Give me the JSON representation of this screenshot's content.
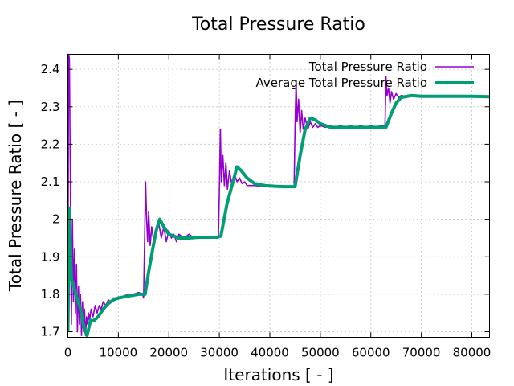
{
  "chart_data": {
    "type": "line",
    "title": "Total Pressure Ratio",
    "xlabel": "Iterations [ - ]",
    "ylabel": "Total Pressure Ratio [ - ]",
    "xlim": [
      0,
      83500
    ],
    "ylim": [
      1.685,
      2.44
    ],
    "xticks": [
      0,
      10000,
      20000,
      30000,
      40000,
      50000,
      60000,
      70000,
      80000
    ],
    "yticks": [
      1.7,
      1.8,
      1.9,
      2.0,
      2.1,
      2.2,
      2.3,
      2.4
    ],
    "ytick_labels": [
      "1.7",
      "1.8",
      "1.9",
      "2",
      "2.1",
      "2.2",
      "2.3",
      "2.4"
    ],
    "grid": true,
    "legend_position": "top-right",
    "series": [
      {
        "name": "Total Pressure Ratio",
        "color": "#9400d3",
        "x": [
          0,
          150,
          300,
          500,
          700,
          900,
          1100,
          1300,
          1500,
          1700,
          1900,
          2100,
          2300,
          2500,
          2700,
          2900,
          3100,
          3300,
          3500,
          3700,
          3900,
          4100,
          4300,
          4600,
          5000,
          5400,
          5800,
          6200,
          6600,
          7000,
          7500,
          8000,
          8500,
          9000,
          10000,
          11000,
          12000,
          13000,
          14000,
          14800,
          15000,
          15200,
          15400,
          15600,
          15800,
          16000,
          16300,
          16600,
          17000,
          17500,
          18000,
          18500,
          19000,
          19500,
          20000,
          20500,
          21000,
          21500,
          22000,
          23000,
          24000,
          25000,
          26000,
          27000,
          28000,
          29000,
          29800,
          30000,
          30200,
          30400,
          30700,
          31000,
          31300,
          31600,
          32000,
          32500,
          33000,
          33500,
          34000,
          34500,
          35000,
          35500,
          36000,
          37000,
          38000,
          39000,
          40000,
          41000,
          42000,
          43000,
          44000,
          44800,
          45000,
          45200,
          45400,
          45700,
          46000,
          46300,
          46600,
          47000,
          47500,
          48000,
          48500,
          49000,
          49500,
          50000,
          51000,
          52000,
          53000,
          54000,
          55000,
          56000,
          57000,
          58000,
          59000,
          60000,
          61000,
          62000,
          62800,
          63000,
          63200,
          63500,
          63800,
          64100,
          64500,
          65000,
          65500,
          66000,
          67000,
          68000,
          69000,
          70000,
          72000,
          74000,
          76000,
          78000,
          80000,
          82000,
          83500
        ],
        "y": [
          1.7,
          2.44,
          2.43,
          2.1,
          1.72,
          2.0,
          1.78,
          1.92,
          1.75,
          1.88,
          1.7,
          1.82,
          1.72,
          1.8,
          1.69,
          1.78,
          1.7,
          1.76,
          1.69,
          1.74,
          1.72,
          1.75,
          1.73,
          1.76,
          1.74,
          1.77,
          1.75,
          1.77,
          1.76,
          1.78,
          1.77,
          1.785,
          1.78,
          1.79,
          1.79,
          1.795,
          1.8,
          1.8,
          1.805,
          1.8,
          1.79,
          1.95,
          2.1,
          2.0,
          1.94,
          2.02,
          1.93,
          1.98,
          1.94,
          1.97,
          1.99,
          1.95,
          1.98,
          1.94,
          1.97,
          1.95,
          1.96,
          1.94,
          1.96,
          1.95,
          1.96,
          1.95,
          1.955,
          1.95,
          1.955,
          1.95,
          1.95,
          2.07,
          2.24,
          2.1,
          2.17,
          2.09,
          2.15,
          2.08,
          2.13,
          2.09,
          2.12,
          2.1,
          2.11,
          2.095,
          2.1,
          2.09,
          2.09,
          2.09,
          2.088,
          2.088,
          2.086,
          2.086,
          2.086,
          2.086,
          2.086,
          2.086,
          2.25,
          2.37,
          2.26,
          2.32,
          2.23,
          2.29,
          2.24,
          2.27,
          2.24,
          2.26,
          2.245,
          2.255,
          2.245,
          2.25,
          2.245,
          2.25,
          2.245,
          2.25,
          2.245,
          2.25,
          2.245,
          2.25,
          2.245,
          2.25,
          2.245,
          2.25,
          2.25,
          2.38,
          2.33,
          2.35,
          2.31,
          2.34,
          2.32,
          2.335,
          2.325,
          2.33,
          2.328,
          2.33,
          2.328,
          2.33,
          2.328,
          2.33,
          2.328,
          2.33,
          2.328,
          2.328,
          2.328
        ]
      },
      {
        "name": "Average Total Pressure Ratio",
        "color": "#009e73",
        "x": [
          0,
          300,
          700,
          1200,
          1800,
          2500,
          3200,
          3800,
          4500,
          5200,
          6000,
          7000,
          8000,
          9000,
          10000,
          12000,
          14000,
          15300,
          16000,
          16800,
          17500,
          18200,
          19000,
          20000,
          21000,
          22000,
          24000,
          26000,
          28000,
          29500,
          30300,
          31500,
          32500,
          33500,
          34300,
          35500,
          37000,
          39000,
          41000,
          43000,
          45000,
          46000,
          47000,
          48000,
          49000,
          50000,
          52000,
          54000,
          56000,
          58000,
          60000,
          62000,
          63000,
          64000,
          65000,
          66000,
          68000,
          70000,
          75000,
          80000,
          83500
        ],
        "y": [
          1.7,
          2.03,
          1.84,
          1.82,
          1.79,
          1.76,
          1.71,
          1.69,
          1.73,
          1.73,
          1.74,
          1.76,
          1.775,
          1.785,
          1.79,
          1.795,
          1.8,
          1.8,
          1.86,
          1.92,
          1.97,
          2.0,
          1.98,
          1.96,
          1.955,
          1.95,
          1.95,
          1.952,
          1.952,
          1.952,
          1.955,
          2.04,
          2.09,
          2.14,
          2.13,
          2.11,
          2.095,
          2.09,
          2.088,
          2.087,
          2.087,
          2.17,
          2.24,
          2.27,
          2.265,
          2.255,
          2.245,
          2.245,
          2.245,
          2.245,
          2.245,
          2.245,
          2.245,
          2.28,
          2.31,
          2.325,
          2.33,
          2.328,
          2.328,
          2.328,
          2.327
        ]
      }
    ]
  }
}
